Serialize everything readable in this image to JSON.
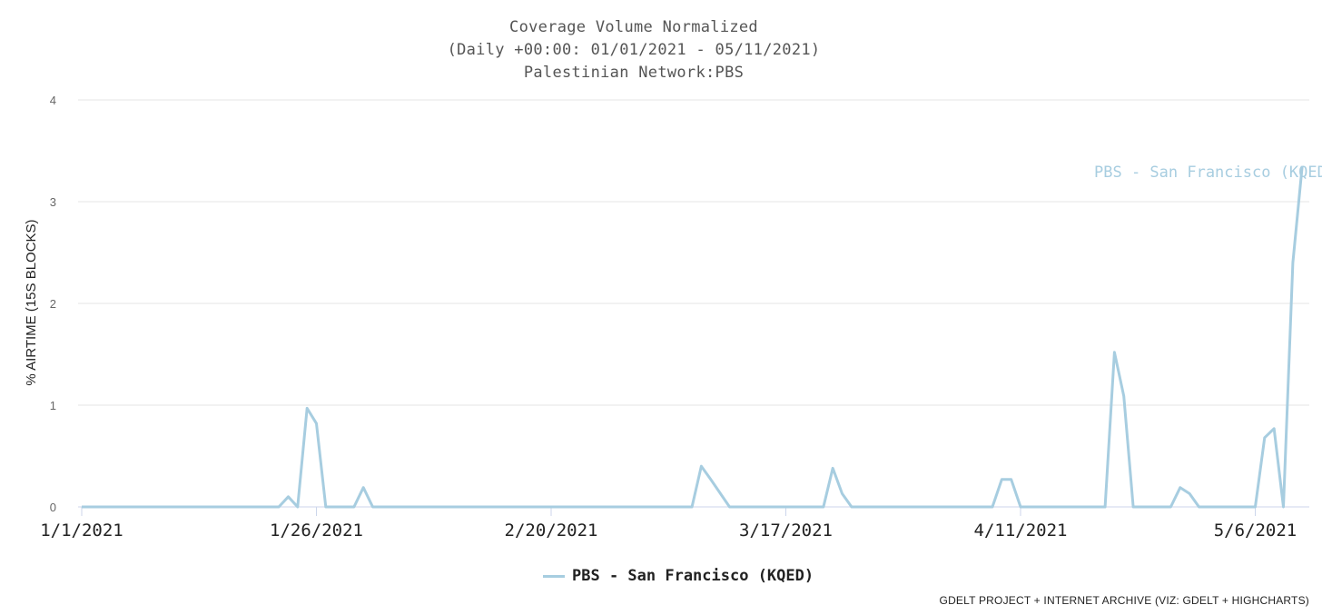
{
  "chart_data": {
    "type": "line",
    "title_lines": [
      "Coverage Volume Normalized",
      "(Daily +00:00: 01/01/2021 - 05/11/2021)",
      "Palestinian Network:PBS"
    ],
    "ylabel": "% AIRTIME (15S BLOCKS)",
    "xlabel": "",
    "ylim": [
      0,
      4
    ],
    "yticks": [
      0,
      1,
      2,
      3,
      4
    ],
    "x_start": "2021-01-01",
    "x_end": "2021-05-11",
    "xticks": [
      {
        "date": "2021-01-01",
        "label": "1/1/2021"
      },
      {
        "date": "2021-01-26",
        "label": "1/26/2021"
      },
      {
        "date": "2021-02-20",
        "label": "2/20/2021"
      },
      {
        "date": "2021-03-17",
        "label": "3/17/2021"
      },
      {
        "date": "2021-04-11",
        "label": "4/11/2021"
      },
      {
        "date": "2021-05-06",
        "label": "5/6/2021"
      }
    ],
    "grid": true,
    "legend_position": "bottom-center",
    "series": [
      {
        "name": "PBS - San Francisco (KQED)",
        "end_label": "PBS - San Francisco (KQED",
        "color": "#a7cde0",
        "points": [
          [
            "2021-01-01",
            0
          ],
          [
            "2021-01:22",
            0
          ],
          [
            "2021-01-23",
            0.1
          ],
          [
            "2021-01-24",
            0
          ],
          [
            "2021-01-25",
            0.97
          ],
          [
            "2021-01-26",
            0.82
          ],
          [
            "2021-01-27",
            0
          ],
          [
            "2021-01-30",
            0
          ],
          [
            "2021-01-31",
            0.19
          ],
          [
            "2021-02-01",
            0
          ],
          [
            "2021-03-07",
            0
          ],
          [
            "2021-03-08",
            0.4
          ],
          [
            "2021-03-09",
            0.27
          ],
          [
            "2021-03-11",
            0
          ],
          [
            "2021-03-21",
            0
          ],
          [
            "2021-03-22",
            0.38
          ],
          [
            "2021-03-23",
            0.13
          ],
          [
            "2021-03-24",
            0
          ],
          [
            "2021-04-08",
            0
          ],
          [
            "2021-04-09",
            0.27
          ],
          [
            "2021-04-10",
            0.27
          ],
          [
            "2021-04-11",
            0
          ],
          [
            "2021-04-20",
            0
          ],
          [
            "2021-04-21",
            1.52
          ],
          [
            "2021-04-22",
            1.09
          ],
          [
            "2021-04-23",
            0
          ],
          [
            "2021-04-27",
            0
          ],
          [
            "2021-04-28",
            0.19
          ],
          [
            "2021-04-29",
            0.13
          ],
          [
            "2021-04-30",
            0
          ],
          [
            "2021-05-06",
            0
          ],
          [
            "2021-05-07",
            0.68
          ],
          [
            "2021-05-08",
            0.77
          ],
          [
            "2021-05-09",
            0
          ],
          [
            "2021-05-10",
            2.4
          ],
          [
            "2021-05-11",
            3.35
          ]
        ]
      }
    ]
  },
  "credits": "GDELT PROJECT + INTERNET ARCHIVE (VIZ: GDELT + HIGHCHARTS)"
}
